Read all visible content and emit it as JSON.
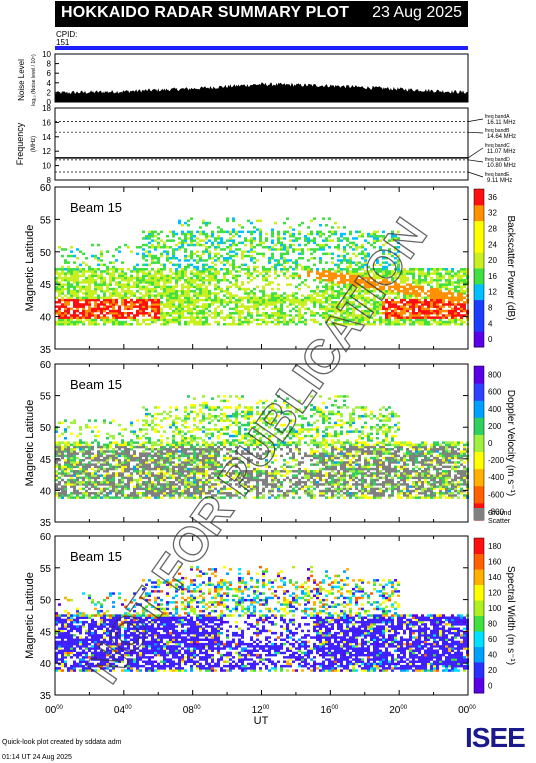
{
  "header": {
    "title": "HOKKAIDO RADAR SUMMARY PLOT",
    "date": "23 Aug 2025",
    "cpid_label": "CPID:",
    "cpid_value": "151"
  },
  "noise_panel": {
    "ylabel": "Noise Level",
    "ylabel_sub": "log₁₀ (Noise level / 10⁵)",
    "ticks": [
      "0",
      "2",
      "4",
      "6",
      "8",
      "10"
    ]
  },
  "freq_panel": {
    "ylabel": "Frequency",
    "ylabel_sub": "(MHz)",
    "ticks": [
      "8",
      "10",
      "12",
      "14",
      "16",
      "18"
    ],
    "bands": [
      {
        "label": "freq bandA",
        "value": "16.11 MHz"
      },
      {
        "label": "freq bandB",
        "value": "14.64 MHz"
      },
      {
        "label": "freq bandC",
        "value": "11.07 MHz"
      },
      {
        "label": "freq bandD",
        "value": "10.80 MHz"
      },
      {
        "label": "freq bandE",
        "value": "9.11 MHz"
      }
    ]
  },
  "panels": [
    {
      "beam": "Beam 15",
      "ylabel": "Magnetic Latitude",
      "cbar_label": "Backscatter Power (dB)",
      "cbar_ticks": [
        "0",
        "4",
        "8",
        "12",
        "16",
        "20",
        "24",
        "28",
        "32",
        "36"
      ]
    },
    {
      "beam": "Beam 15",
      "ylabel": "Magnetic Latitude",
      "cbar_label": "Doppler Velocity (m s⁻¹)",
      "cbar_ticks": [
        "-800",
        "-600",
        "-400",
        "-200",
        "0",
        "200",
        "400",
        "600",
        "800"
      ],
      "ground_label": "Ground",
      "ground_label2": "Scatter"
    },
    {
      "beam": "Beam 15",
      "ylabel": "Magnetic Latitude",
      "cbar_label": "Spectral Width (m s⁻¹)",
      "cbar_ticks": [
        "0",
        "20",
        "40",
        "60",
        "80",
        "100",
        "120",
        "140",
        "160",
        "180"
      ]
    }
  ],
  "lat_ticks": [
    "35",
    "40",
    "45",
    "50",
    "55",
    "60"
  ],
  "time_ticks": [
    "00",
    "04",
    "08",
    "12",
    "16",
    "20",
    "00"
  ],
  "time_sup": "00",
  "xlabel": "UT",
  "watermark": "NOT FOR PUBLICATION",
  "credit_line1": "Quick-look plot created by sddata adm",
  "credit_line2": "01:14 UT 24 Aug 2025",
  "logo": "ISEE",
  "chart_data": [
    {
      "type": "area",
      "title": "Noise Level",
      "x_range_hours": [
        0,
        24
      ],
      "ylim": [
        0,
        10
      ],
      "x": [
        0,
        4,
        8,
        12,
        16,
        20,
        24
      ],
      "values": [
        1.5,
        1.8,
        2.4,
        3.3,
        3.0,
        2.3,
        1.6
      ]
    },
    {
      "type": "line",
      "title": "Frequency",
      "ylim": [
        8,
        18
      ],
      "x": [
        0,
        24
      ],
      "series": [
        {
          "name": "band",
          "values": [
            11.07,
            11.07
          ]
        }
      ]
    },
    {
      "type": "heatmap",
      "title": "Backscatter Power (dB)",
      "x_range_hours": [
        0,
        24
      ],
      "ylim": [
        35,
        60
      ],
      "clim": [
        0,
        36
      ]
    },
    {
      "type": "heatmap",
      "title": "Doppler Velocity (m s-1)",
      "x_range_hours": [
        0,
        24
      ],
      "ylim": [
        35,
        60
      ],
      "clim": [
        -800,
        800
      ]
    },
    {
      "type": "heatmap",
      "title": "Spectral Width (m s-1)",
      "x_range_hours": [
        0,
        24
      ],
      "ylim": [
        35,
        60
      ],
      "clim": [
        0,
        180
      ]
    }
  ]
}
